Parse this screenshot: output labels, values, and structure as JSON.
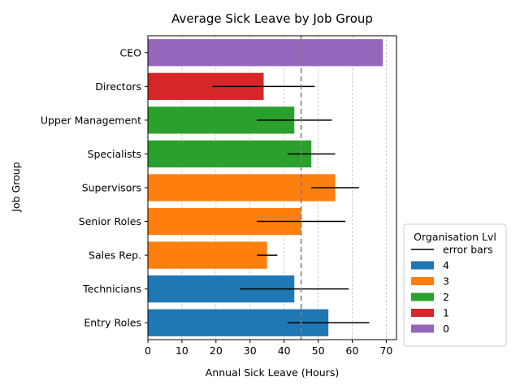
{
  "chart_data": {
    "type": "bar",
    "orientation": "horizontal",
    "title": "Average Sick Leave by Job Group",
    "xlabel": "Annual Sick Leave (Hours)",
    "ylabel": "Job Group",
    "xlim": [
      0,
      73
    ],
    "xticks": [
      0,
      10,
      20,
      30,
      40,
      50,
      60,
      70
    ],
    "grid": "vertical dashed",
    "reference_line": {
      "x": 45,
      "style": "dashed",
      "color": "#808080"
    },
    "categories": [
      "Entry Roles",
      "Technicians",
      "Sales Rep.",
      "Senior Roles",
      "Supervisors",
      "Specialists",
      "Upper Management",
      "Directors",
      "CEO"
    ],
    "values": [
      53,
      43,
      35,
      45,
      55,
      48,
      43,
      34,
      69
    ],
    "error_low": [
      41,
      27,
      32,
      32,
      48,
      41,
      32,
      19,
      null
    ],
    "error_high": [
      65,
      59,
      38,
      58,
      62,
      55,
      54,
      49,
      null
    ],
    "levels": [
      "4",
      "4",
      "3",
      "3",
      "3",
      "2",
      "2",
      "1",
      "0"
    ],
    "level_colors": {
      "4": "#1f77b4",
      "3": "#ff7f0e",
      "2": "#2ca02c",
      "1": "#d62728",
      "0": "#9467bd"
    },
    "legend": {
      "title": "Organisation Lvl",
      "placement": "lower-right outside",
      "entries": [
        "error bars",
        "4",
        "3",
        "2",
        "1",
        "0"
      ]
    }
  }
}
